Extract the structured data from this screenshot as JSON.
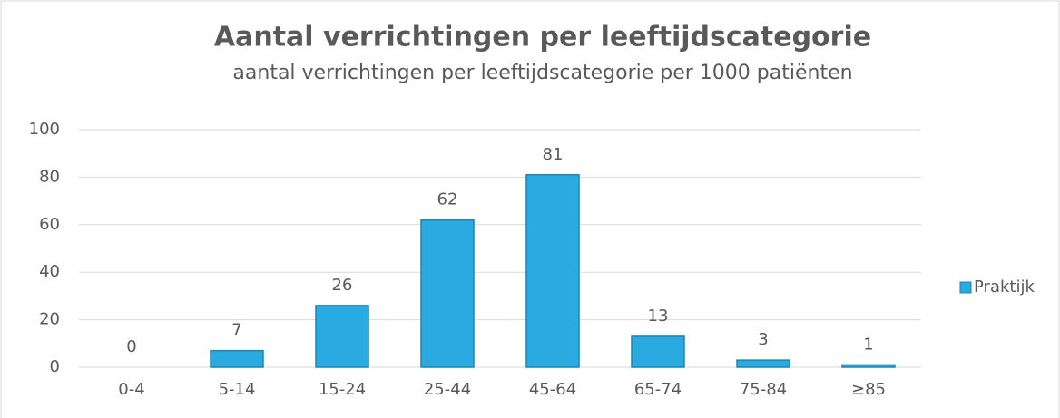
{
  "chart_data": {
    "type": "bar",
    "title": "Aantal verrichtingen per leeftijdscategorie",
    "subtitle": "aantal verrichtingen per leeftijdscategorie per 1000 patiënten",
    "categories": [
      "0-4",
      "5-14",
      "15-24",
      "25-44",
      "45-64",
      "65-74",
      "75-84",
      "≥85"
    ],
    "series": [
      {
        "name": "Praktijk",
        "color": "#29abe2",
        "values": [
          0,
          7,
          26,
          62,
          81,
          13,
          3,
          1
        ]
      }
    ],
    "ylim": [
      0,
      100
    ],
    "yticks": [
      0,
      20,
      40,
      60,
      80,
      100
    ],
    "grid": true,
    "legend": "right"
  }
}
